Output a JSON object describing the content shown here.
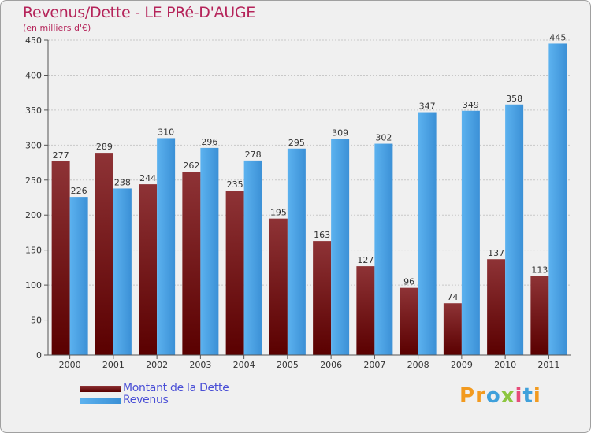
{
  "header": {
    "title": "Revenus/Dette - LE PRé-D'AUGE",
    "subtitle": "(en milliers d'€)"
  },
  "chart_data": {
    "type": "bar",
    "categories": [
      "2000",
      "2001",
      "2002",
      "2003",
      "2004",
      "2005",
      "2006",
      "2007",
      "2008",
      "2009",
      "2010",
      "2011"
    ],
    "series": [
      {
        "name": "Montant de la Dette",
        "values": [
          277,
          289,
          244,
          262,
          235,
          195,
          163,
          127,
          96,
          74,
          137,
          113
        ],
        "color": "#7a1c1c"
      },
      {
        "name": "Revenus",
        "values": [
          226,
          238,
          310,
          296,
          278,
          295,
          309,
          302,
          347,
          349,
          358,
          445
        ],
        "color": "#4ea6e6"
      }
    ],
    "yticks": [
      0,
      50,
      100,
      150,
      200,
      250,
      300,
      350,
      400,
      450
    ],
    "ylim": [
      0,
      450
    ],
    "grid": true,
    "legend_position": "bottom-left"
  },
  "legend": {
    "items": [
      {
        "label": "Montant de la Dette",
        "color": "#7a1c1c"
      },
      {
        "label": "Revenus",
        "color": "#4ea6e6"
      }
    ]
  },
  "brand": {
    "letters": [
      {
        "char": "P",
        "color": "#f29a1f"
      },
      {
        "char": "r",
        "color": "#f29a1f"
      },
      {
        "char": "o",
        "color": "#3fa0db"
      },
      {
        "char": "x",
        "color": "#8cc63f"
      },
      {
        "char": "i",
        "color": "#e74c7a"
      },
      {
        "char": "t",
        "color": "#3fa0db"
      },
      {
        "char": "i",
        "color": "#f29a1f"
      }
    ]
  }
}
